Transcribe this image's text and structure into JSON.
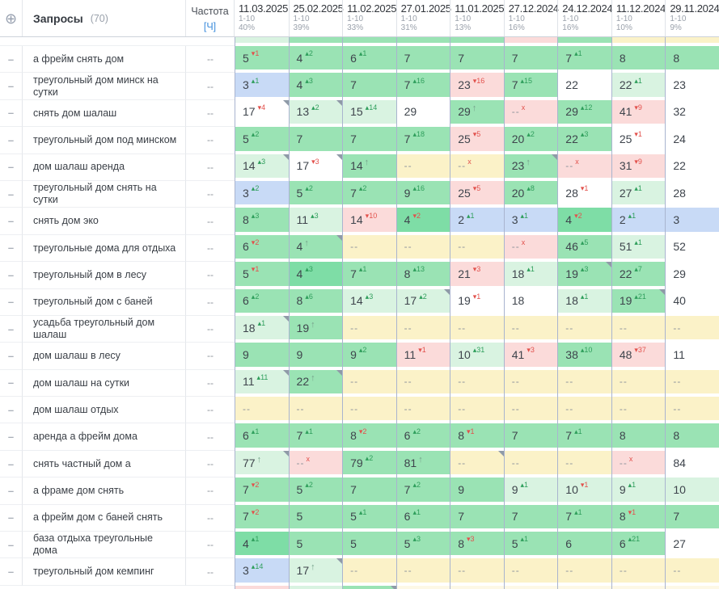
{
  "header": {
    "queries_label": "Запросы",
    "queries_count": "(70)",
    "frequency_label": "Частота",
    "frequency_unit": "[Ч]",
    "columns": [
      {
        "date": "11.03.2025",
        "range": "1-10",
        "percent": "40%"
      },
      {
        "date": "25.02.2025",
        "range": "1-10",
        "percent": "39%"
      },
      {
        "date": "11.02.2025",
        "range": "1-10",
        "percent": "33%"
      },
      {
        "date": "27.01.2025",
        "range": "1-10",
        "percent": "31%"
      },
      {
        "date": "11.01.2025",
        "range": "1-10",
        "percent": "13%"
      },
      {
        "date": "27.12.2024",
        "range": "1-10",
        "percent": "16%"
      },
      {
        "date": "24.12.2024",
        "range": "1-10",
        "percent": "16%"
      },
      {
        "date": "11.12.2024",
        "range": "1-10",
        "percent": "10%"
      },
      {
        "date": "29.11.2024",
        "range": "1-10",
        "percent": "9%"
      }
    ]
  },
  "glyphs": {
    "target": "⊕",
    "drag_handle": "–",
    "up_arrow": "↑",
    "dropped_x": "x",
    "delta_up": "▴",
    "delta_down": "▾",
    "empty": "--"
  },
  "colors": {
    "g": "#9ae3b4",
    "gd": "#7edda6",
    "gl": "#d9f3e1",
    "b": "#c8daf6",
    "y": "#fbf2c8",
    "p": "#fbdbda",
    "w": "#ffffff",
    "yl": "#fdf8e6",
    "delta_green": "#2e9e5b",
    "delta_red": "#e2514c"
  },
  "top_sliver": [
    "gl",
    "g",
    "g",
    "g",
    "g",
    "p",
    "g",
    "y",
    "y"
  ],
  "bottom_sliver": [
    {
      "bg": "p"
    },
    {
      "bg": "gl"
    },
    {
      "bg": "g",
      "f": 1
    },
    {
      "bg": "yl"
    },
    {
      "bg": "yl"
    },
    {
      "bg": "yl"
    },
    {
      "bg": "yl"
    },
    {
      "bg": "yl"
    },
    {
      "bg": "yl"
    }
  ],
  "rows": [
    {
      "kw": "а фрейм снять дом",
      "freq": "--",
      "cells": [
        {
          "v": "5",
          "d": "1",
          "dc": "r",
          "bg": "g"
        },
        {
          "v": "4",
          "d": "2",
          "dc": "g",
          "bg": "g"
        },
        {
          "v": "6",
          "d": "1",
          "dc": "g",
          "bg": "g"
        },
        {
          "v": "7",
          "bg": "g"
        },
        {
          "v": "7",
          "bg": "g"
        },
        {
          "v": "7",
          "bg": "g"
        },
        {
          "v": "7",
          "d": "1",
          "dc": "g",
          "bg": "g"
        },
        {
          "v": "8",
          "bg": "g"
        },
        {
          "v": "8",
          "bg": "g"
        }
      ]
    },
    {
      "kw": "треугольный дом минск на сутки",
      "freq": "--",
      "cells": [
        {
          "v": "3",
          "d": "1",
          "dc": "g",
          "bg": "b"
        },
        {
          "v": "4",
          "d": "3",
          "dc": "g",
          "bg": "g"
        },
        {
          "v": "7",
          "bg": "g"
        },
        {
          "v": "7",
          "d": "16",
          "dc": "g",
          "bg": "g"
        },
        {
          "v": "23",
          "d": "16",
          "dc": "r",
          "bg": "p"
        },
        {
          "v": "7",
          "d": "15",
          "dc": "g",
          "bg": "g"
        },
        {
          "v": "22",
          "bg": "w"
        },
        {
          "v": "22",
          "d": "1",
          "dc": "g",
          "bg": "gl"
        },
        {
          "v": "23",
          "bg": "w"
        }
      ]
    },
    {
      "kw": "снять дом шалаш",
      "freq": "--",
      "cells": [
        {
          "v": "17",
          "d": "4",
          "dc": "r",
          "bg": "w",
          "f": 1
        },
        {
          "v": "13",
          "d": "2",
          "dc": "g",
          "bg": "gl",
          "f": 1
        },
        {
          "v": "15",
          "d": "14",
          "dc": "g",
          "bg": "gl"
        },
        {
          "v": "29",
          "bg": "w"
        },
        {
          "v": "29",
          "a": 1,
          "bg": "g"
        },
        {
          "v": "--",
          "x": 1,
          "bg": "p"
        },
        {
          "v": "29",
          "d": "12",
          "dc": "g",
          "bg": "g"
        },
        {
          "v": "41",
          "d": "9",
          "dc": "r",
          "bg": "p"
        },
        {
          "v": "32",
          "bg": "w"
        }
      ]
    },
    {
      "kw": "треугольный дом под минском",
      "freq": "--",
      "cells": [
        {
          "v": "5",
          "d": "2",
          "dc": "g",
          "bg": "g"
        },
        {
          "v": "7",
          "bg": "g"
        },
        {
          "v": "7",
          "bg": "g"
        },
        {
          "v": "7",
          "d": "18",
          "dc": "g",
          "bg": "g"
        },
        {
          "v": "25",
          "d": "5",
          "dc": "r",
          "bg": "p"
        },
        {
          "v": "20",
          "d": "2",
          "dc": "g",
          "bg": "g"
        },
        {
          "v": "22",
          "d": "3",
          "dc": "g",
          "bg": "g"
        },
        {
          "v": "25",
          "d": "1",
          "dc": "r",
          "bg": "w"
        },
        {
          "v": "24",
          "bg": "w"
        }
      ]
    },
    {
      "kw": "дом шалаш аренда",
      "freq": "--",
      "cells": [
        {
          "v": "14",
          "d": "3",
          "dc": "g",
          "bg": "gl",
          "f": 1
        },
        {
          "v": "17",
          "d": "3",
          "dc": "r",
          "bg": "w",
          "f": 1
        },
        {
          "v": "14",
          "a": 1,
          "bg": "g"
        },
        {
          "v": "--",
          "bg": "y"
        },
        {
          "v": "--",
          "x": 1,
          "bg": "y"
        },
        {
          "v": "23",
          "a": 1,
          "bg": "g",
          "f": 1
        },
        {
          "v": "--",
          "x": 1,
          "bg": "p"
        },
        {
          "v": "31",
          "d": "9",
          "dc": "r",
          "bg": "p"
        },
        {
          "v": "22",
          "bg": "w"
        }
      ]
    },
    {
      "kw": "треугольный дом снять на сутки",
      "freq": "--",
      "cells": [
        {
          "v": "3",
          "d": "2",
          "dc": "g",
          "bg": "b"
        },
        {
          "v": "5",
          "d": "2",
          "dc": "g",
          "bg": "g"
        },
        {
          "v": "7",
          "d": "2",
          "dc": "g",
          "bg": "g"
        },
        {
          "v": "9",
          "d": "16",
          "dc": "g",
          "bg": "g"
        },
        {
          "v": "25",
          "d": "5",
          "dc": "r",
          "bg": "p"
        },
        {
          "v": "20",
          "d": "8",
          "dc": "g",
          "bg": "g"
        },
        {
          "v": "28",
          "d": "1",
          "dc": "r",
          "bg": "w"
        },
        {
          "v": "27",
          "d": "1",
          "dc": "g",
          "bg": "gl"
        },
        {
          "v": "28",
          "bg": "w"
        }
      ]
    },
    {
      "kw": "снять дом эко",
      "freq": "--",
      "cells": [
        {
          "v": "8",
          "d": "3",
          "dc": "g",
          "bg": "g"
        },
        {
          "v": "11",
          "d": "3",
          "dc": "g",
          "bg": "gl"
        },
        {
          "v": "14",
          "d": "10",
          "dc": "r",
          "bg": "p"
        },
        {
          "v": "4",
          "d": "2",
          "dc": "r",
          "bg": "gd"
        },
        {
          "v": "2",
          "d": "1",
          "dc": "g",
          "bg": "b"
        },
        {
          "v": "3",
          "d": "1",
          "dc": "g",
          "bg": "b"
        },
        {
          "v": "4",
          "d": "2",
          "dc": "r",
          "bg": "gd"
        },
        {
          "v": "2",
          "d": "1",
          "dc": "g",
          "bg": "b"
        },
        {
          "v": "3",
          "bg": "b"
        }
      ]
    },
    {
      "kw": "треугольные дома для отдыха",
      "freq": "--",
      "cells": [
        {
          "v": "6",
          "d": "2",
          "dc": "r",
          "bg": "g"
        },
        {
          "v": "4",
          "a": 1,
          "bg": "g",
          "f": 1
        },
        {
          "v": "--",
          "bg": "y"
        },
        {
          "v": "--",
          "bg": "y"
        },
        {
          "v": "--",
          "bg": "y"
        },
        {
          "v": "--",
          "x": 1,
          "bg": "p"
        },
        {
          "v": "46",
          "d": "5",
          "dc": "g",
          "bg": "g"
        },
        {
          "v": "51",
          "d": "1",
          "dc": "g",
          "bg": "gl"
        },
        {
          "v": "52",
          "bg": "w"
        }
      ]
    },
    {
      "kw": "треугольный дом в лесу",
      "freq": "--",
      "cells": [
        {
          "v": "5",
          "d": "1",
          "dc": "r",
          "bg": "g"
        },
        {
          "v": "4",
          "d": "3",
          "dc": "g",
          "bg": "gd"
        },
        {
          "v": "7",
          "d": "1",
          "dc": "g",
          "bg": "g"
        },
        {
          "v": "8",
          "d": "13",
          "dc": "g",
          "bg": "g"
        },
        {
          "v": "21",
          "d": "3",
          "dc": "r",
          "bg": "p"
        },
        {
          "v": "18",
          "d": "1",
          "dc": "g",
          "bg": "gl"
        },
        {
          "v": "19",
          "d": "3",
          "dc": "g",
          "bg": "g",
          "f": 1
        },
        {
          "v": "22",
          "d": "7",
          "dc": "g",
          "bg": "g"
        },
        {
          "v": "29",
          "bg": "w"
        }
      ]
    },
    {
      "kw": "треугольный дом с баней",
      "freq": "--",
      "cells": [
        {
          "v": "6",
          "d": "2",
          "dc": "g",
          "bg": "g"
        },
        {
          "v": "8",
          "d": "6",
          "dc": "g",
          "bg": "g"
        },
        {
          "v": "14",
          "d": "3",
          "dc": "g",
          "bg": "gl"
        },
        {
          "v": "17",
          "d": "2",
          "dc": "g",
          "bg": "gl",
          "f": 1
        },
        {
          "v": "19",
          "d": "1",
          "dc": "r",
          "bg": "w"
        },
        {
          "v": "18",
          "bg": "w"
        },
        {
          "v": "18",
          "d": "1",
          "dc": "g",
          "bg": "gl"
        },
        {
          "v": "19",
          "d": "21",
          "dc": "g",
          "bg": "g",
          "f": 1
        },
        {
          "v": "40",
          "bg": "w"
        }
      ]
    },
    {
      "kw": "усадьба треугольный дом шалаш",
      "freq": "--",
      "cells": [
        {
          "v": "18",
          "d": "1",
          "dc": "g",
          "bg": "gl",
          "f": 1
        },
        {
          "v": "19",
          "a": 1,
          "bg": "g"
        },
        {
          "v": "--",
          "bg": "y"
        },
        {
          "v": "--",
          "bg": "y"
        },
        {
          "v": "--",
          "bg": "y"
        },
        {
          "v": "--",
          "bg": "y"
        },
        {
          "v": "--",
          "bg": "y"
        },
        {
          "v": "--",
          "bg": "y"
        },
        {
          "v": "--",
          "bg": "y"
        }
      ]
    },
    {
      "kw": "дом шалаш в лесу",
      "freq": "--",
      "cells": [
        {
          "v": "9",
          "bg": "g"
        },
        {
          "v": "9",
          "bg": "g"
        },
        {
          "v": "9",
          "d": "2",
          "dc": "g",
          "bg": "g"
        },
        {
          "v": "11",
          "d": "1",
          "dc": "r",
          "bg": "p"
        },
        {
          "v": "10",
          "d": "31",
          "dc": "g",
          "bg": "gl"
        },
        {
          "v": "41",
          "d": "3",
          "dc": "r",
          "bg": "p"
        },
        {
          "v": "38",
          "d": "10",
          "dc": "g",
          "bg": "g"
        },
        {
          "v": "48",
          "d": "37",
          "dc": "r",
          "bg": "p"
        },
        {
          "v": "11",
          "bg": "w"
        }
      ]
    },
    {
      "kw": "дом шалаш на сутки",
      "freq": "--",
      "cells": [
        {
          "v": "11",
          "d": "11",
          "dc": "g",
          "bg": "gl",
          "f": 1
        },
        {
          "v": "22",
          "a": 1,
          "bg": "g",
          "f": 1
        },
        {
          "v": "--",
          "bg": "y"
        },
        {
          "v": "--",
          "bg": "y"
        },
        {
          "v": "--",
          "bg": "y"
        },
        {
          "v": "--",
          "bg": "y"
        },
        {
          "v": "--",
          "bg": "y"
        },
        {
          "v": "--",
          "bg": "y"
        },
        {
          "v": "--",
          "bg": "y"
        }
      ]
    },
    {
      "kw": "дом шалаш отдых",
      "freq": "--",
      "cells": [
        {
          "v": "--",
          "bg": "y"
        },
        {
          "v": "--",
          "bg": "y"
        },
        {
          "v": "--",
          "bg": "y"
        },
        {
          "v": "--",
          "bg": "y"
        },
        {
          "v": "--",
          "bg": "y"
        },
        {
          "v": "--",
          "bg": "y"
        },
        {
          "v": "--",
          "bg": "y"
        },
        {
          "v": "--",
          "bg": "y"
        },
        {
          "v": "--",
          "bg": "y"
        }
      ]
    },
    {
      "kw": "аренда а фрейм дома",
      "freq": "--",
      "cells": [
        {
          "v": "6",
          "d": "1",
          "dc": "g",
          "bg": "g"
        },
        {
          "v": "7",
          "d": "1",
          "dc": "g",
          "bg": "g"
        },
        {
          "v": "8",
          "d": "2",
          "dc": "r",
          "bg": "g"
        },
        {
          "v": "6",
          "d": "2",
          "dc": "g",
          "bg": "g"
        },
        {
          "v": "8",
          "d": "1",
          "dc": "r",
          "bg": "g"
        },
        {
          "v": "7",
          "bg": "g"
        },
        {
          "v": "7",
          "d": "1",
          "dc": "g",
          "bg": "g"
        },
        {
          "v": "8",
          "bg": "g"
        },
        {
          "v": "8",
          "bg": "g"
        }
      ]
    },
    {
      "kw": "снять частный дом а",
      "freq": "--",
      "cells": [
        {
          "v": "77",
          "a": 1,
          "bg": "gl",
          "f": 1
        },
        {
          "v": "--",
          "x": 1,
          "bg": "p"
        },
        {
          "v": "79",
          "d": "2",
          "dc": "g",
          "bg": "g"
        },
        {
          "v": "81",
          "a": 1,
          "bg": "g"
        },
        {
          "v": "--",
          "bg": "y",
          "f": 1
        },
        {
          "v": "--",
          "bg": "y"
        },
        {
          "v": "--",
          "bg": "y"
        },
        {
          "v": "--",
          "x": 1,
          "bg": "p"
        },
        {
          "v": "84",
          "bg": "w"
        }
      ]
    },
    {
      "kw": "а фраме дом снять",
      "freq": "--",
      "cells": [
        {
          "v": "7",
          "d": "2",
          "dc": "r",
          "bg": "g"
        },
        {
          "v": "5",
          "d": "2",
          "dc": "g",
          "bg": "g"
        },
        {
          "v": "7",
          "bg": "g"
        },
        {
          "v": "7",
          "d": "2",
          "dc": "g",
          "bg": "g"
        },
        {
          "v": "9",
          "bg": "g"
        },
        {
          "v": "9",
          "d": "1",
          "dc": "g",
          "bg": "gl"
        },
        {
          "v": "10",
          "d": "1",
          "dc": "r",
          "bg": "gl"
        },
        {
          "v": "9",
          "d": "1",
          "dc": "g",
          "bg": "gl"
        },
        {
          "v": "10",
          "bg": "gl"
        }
      ]
    },
    {
      "kw": "а фрейм дом с баней снять",
      "freq": "--",
      "cells": [
        {
          "v": "7",
          "d": "2",
          "dc": "r",
          "bg": "g"
        },
        {
          "v": "5",
          "bg": "g"
        },
        {
          "v": "5",
          "d": "1",
          "dc": "g",
          "bg": "g"
        },
        {
          "v": "6",
          "d": "1",
          "dc": "g",
          "bg": "g"
        },
        {
          "v": "7",
          "bg": "g"
        },
        {
          "v": "7",
          "bg": "g"
        },
        {
          "v": "7",
          "d": "1",
          "dc": "g",
          "bg": "g"
        },
        {
          "v": "8",
          "d": "1",
          "dc": "r",
          "bg": "g"
        },
        {
          "v": "7",
          "bg": "g"
        }
      ]
    },
    {
      "kw": "база отдыха треугольные дома",
      "freq": "--",
      "cells": [
        {
          "v": "4",
          "d": "1",
          "dc": "g",
          "bg": "gd"
        },
        {
          "v": "5",
          "bg": "g"
        },
        {
          "v": "5",
          "bg": "g"
        },
        {
          "v": "5",
          "d": "3",
          "dc": "g",
          "bg": "g"
        },
        {
          "v": "8",
          "d": "3",
          "dc": "r",
          "bg": "g"
        },
        {
          "v": "5",
          "d": "1",
          "dc": "g",
          "bg": "g"
        },
        {
          "v": "6",
          "bg": "g"
        },
        {
          "v": "6",
          "d": "21",
          "dc": "g",
          "bg": "g"
        },
        {
          "v": "27",
          "bg": "w"
        }
      ]
    },
    {
      "kw": "треугольный дом кемпинг",
      "freq": "--",
      "cells": [
        {
          "v": "3",
          "d": "14",
          "dc": "g",
          "bg": "b"
        },
        {
          "v": "17",
          "a": 1,
          "bg": "gl",
          "f": 1
        },
        {
          "v": "--",
          "bg": "y"
        },
        {
          "v": "--",
          "bg": "y"
        },
        {
          "v": "--",
          "bg": "y"
        },
        {
          "v": "--",
          "bg": "y"
        },
        {
          "v": "--",
          "bg": "y"
        },
        {
          "v": "--",
          "bg": "y"
        },
        {
          "v": "--",
          "bg": "y"
        }
      ]
    }
  ]
}
